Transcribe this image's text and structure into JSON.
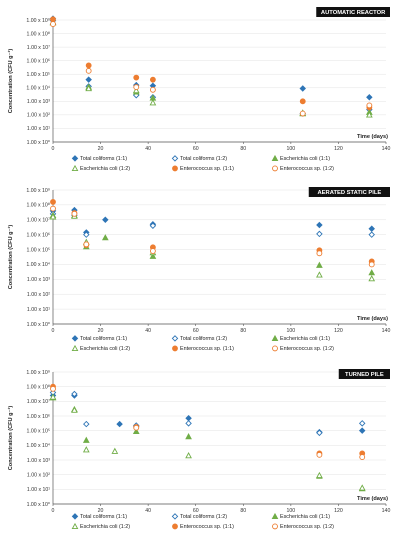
{
  "chart_data": [
    {
      "type": "scatter",
      "title": "AUTOMATIC REACTOR",
      "xlabel": "Time (days)",
      "ylabel": "Concentration (CFU g⁻¹)",
      "xlim": [
        0,
        140
      ],
      "x_ticks": [
        "0",
        "20",
        "40",
        "60",
        "80",
        "100",
        "120",
        "140"
      ],
      "ylim_log10": [
        0,
        9
      ],
      "y_ticks": [
        "1.00 x 10⁰",
        "1.00 x 10¹",
        "1.00 x 10²",
        "1.00 x 10³",
        "1.00 x 10⁴",
        "1.00 x 10⁵",
        "1.00 x 10⁶",
        "1.00 x 10⁷",
        "1.00 x 10⁸",
        "1.00 x 10⁹"
      ],
      "series": [
        {
          "name": "Total coliforms (1:1)",
          "marker": "diamond-filled",
          "color": "#2e75b6",
          "points": [
            [
              0,
              9.1
            ],
            [
              15,
              4.6
            ],
            [
              35,
              4.2
            ],
            [
              42,
              4.15
            ],
            [
              105,
              3.95
            ],
            [
              133,
              3.3
            ]
          ]
        },
        {
          "name": "Total coliforms (1:2)",
          "marker": "diamond-open",
          "color": "#2e75b6",
          "points": [
            [
              0,
              8.95
            ],
            [
              15,
              4.1
            ],
            [
              35,
              3.45
            ],
            [
              42,
              3.3
            ],
            [
              105,
              2.1
            ],
            [
              133,
              2.4
            ]
          ]
        },
        {
          "name": "Escherichia coli (1:1)",
          "marker": "triangle-filled",
          "color": "#70ad47",
          "points": [
            [
              0,
              8.8
            ],
            [
              15,
              4.05
            ],
            [
              35,
              3.7
            ],
            [
              42,
              3.25
            ],
            [
              105,
              2.1
            ],
            [
              133,
              2.2
            ]
          ]
        },
        {
          "name": "Escherichia coli (1:2)",
          "marker": "triangle-open",
          "color": "#70ad47",
          "points": [
            [
              0,
              8.85
            ],
            [
              15,
              3.95
            ],
            [
              35,
              3.8
            ],
            [
              42,
              2.9
            ],
            [
              105,
              2.15
            ],
            [
              133,
              2.0
            ]
          ]
        },
        {
          "name": "Enterococcus sp. (1:1)",
          "marker": "circle-filled",
          "color": "#ed7d31",
          "points": [
            [
              0,
              9.05
            ],
            [
              15,
              5.65
            ],
            [
              35,
              4.75
            ],
            [
              42,
              4.6
            ],
            [
              105,
              3.0
            ],
            [
              133,
              2.55
            ]
          ]
        },
        {
          "name": "Enterococcus sp. (1:2)",
          "marker": "circle-open",
          "color": "#ed7d31",
          "points": [
            [
              0,
              8.7
            ],
            [
              15,
              5.25
            ],
            [
              35,
              4.05
            ],
            [
              42,
              3.85
            ],
            [
              105,
              2.1
            ],
            [
              133,
              2.7
            ]
          ]
        }
      ]
    },
    {
      "type": "scatter",
      "title": "AERATED STATIC PILE",
      "xlabel": "Time (days)",
      "ylabel": "Concentration (CFU g⁻¹)",
      "xlim": [
        0,
        140
      ],
      "x_ticks": [
        "0",
        "20",
        "40",
        "60",
        "80",
        "100",
        "120",
        "140"
      ],
      "ylim_log10": [
        0,
        9
      ],
      "y_ticks": [
        "1.00 x 10⁰",
        "1.00 x 10¹",
        "1.00 x 10²",
        "1.00 x 10³",
        "1.00 x 10⁴",
        "1.00 x 10⁵",
        "1.00 x 10⁶",
        "1.00 x 10⁷",
        "1.00 x 10⁸",
        "1.00 x 10⁹"
      ],
      "series": [
        {
          "name": "Total coliforms (1:1)",
          "marker": "diamond-filled",
          "color": "#2e75b6",
          "points": [
            [
              0,
              7.6
            ],
            [
              9,
              7.65
            ],
            [
              14,
              6.15
            ],
            [
              22,
              7.0
            ],
            [
              42,
              6.7
            ],
            [
              112,
              6.65
            ],
            [
              134,
              6.4
            ]
          ]
        },
        {
          "name": "Total coliforms (1:2)",
          "marker": "diamond-open",
          "color": "#2e75b6",
          "points": [
            [
              0,
              7.4
            ],
            [
              9,
              7.3
            ],
            [
              14,
              6.0
            ],
            [
              42,
              6.6
            ],
            [
              112,
              6.05
            ],
            [
              134,
              6.0
            ]
          ]
        },
        {
          "name": "Escherichia coli (1:1)",
          "marker": "triangle-filled",
          "color": "#70ad47",
          "points": [
            [
              0,
              7.3
            ],
            [
              9,
              7.3
            ],
            [
              14,
              5.2
            ],
            [
              22,
              5.8
            ],
            [
              42,
              4.55
            ],
            [
              112,
              3.95
            ],
            [
              134,
              3.45
            ]
          ]
        },
        {
          "name": "Escherichia coli (1:2)",
          "marker": "triangle-open",
          "color": "#70ad47",
          "points": [
            [
              0,
              7.2
            ],
            [
              9,
              7.25
            ],
            [
              14,
              5.5
            ],
            [
              42,
              4.8
            ],
            [
              112,
              3.3
            ],
            [
              134,
              3.05
            ]
          ]
        },
        {
          "name": "Enterococcus sp. (1:1)",
          "marker": "circle-filled",
          "color": "#ed7d31",
          "points": [
            [
              0,
              8.2
            ],
            [
              9,
              7.45
            ],
            [
              14,
              5.3
            ],
            [
              42,
              5.15
            ],
            [
              112,
              4.95
            ],
            [
              134,
              4.2
            ]
          ]
        },
        {
          "name": "Enterococcus sp. (1:2)",
          "marker": "circle-open",
          "color": "#ed7d31",
          "points": [
            [
              0,
              7.75
            ],
            [
              9,
              7.4
            ],
            [
              14,
              5.35
            ],
            [
              42,
              4.9
            ],
            [
              112,
              4.75
            ],
            [
              134,
              4.0
            ]
          ]
        }
      ]
    },
    {
      "type": "scatter",
      "title": "TURNED PILE",
      "xlabel": "Time (days)",
      "ylabel": "Concentration (CFU g⁻¹)",
      "xlim": [
        0,
        140
      ],
      "x_ticks": [
        "0",
        "20",
        "40",
        "60",
        "80",
        "100",
        "120",
        "140"
      ],
      "ylim_log10": [
        0,
        9
      ],
      "y_ticks": [
        "1.00 x 10⁰",
        "1.00 x 10¹",
        "1.00 x 10²",
        "1.00 x 10³",
        "1.00 x 10⁴",
        "1.00 x 10⁵",
        "1.00 x 10⁶",
        "1.00 x 10⁷",
        "1.00 x 10⁸",
        "1.00 x 10⁹"
      ],
      "series": [
        {
          "name": "Total coliforms (1:1)",
          "marker": "diamond-filled",
          "color": "#2e75b6",
          "points": [
            [
              0,
              7.4
            ],
            [
              9,
              7.4
            ],
            [
              28,
              5.45
            ],
            [
              35,
              5.3
            ],
            [
              57,
              5.85
            ],
            [
              112,
              4.9
            ],
            [
              130,
              5.0
            ]
          ]
        },
        {
          "name": "Total coliforms (1:2)",
          "marker": "diamond-open",
          "color": "#2e75b6",
          "points": [
            [
              0,
              7.6
            ],
            [
              9,
              7.5
            ],
            [
              14,
              5.45
            ],
            [
              35,
              5.35
            ],
            [
              57,
              5.5
            ],
            [
              112,
              4.85
            ],
            [
              130,
              5.5
            ]
          ]
        },
        {
          "name": "Escherichia coli (1:1)",
          "marker": "triangle-filled",
          "color": "#70ad47",
          "points": [
            [
              0,
              7.25
            ],
            [
              9,
              6.45
            ],
            [
              14,
              4.35
            ],
            [
              35,
              4.95
            ],
            [
              57,
              4.6
            ],
            [
              112,
              1.9
            ],
            [
              130,
              1.05
            ]
          ]
        },
        {
          "name": "Escherichia coli (1:2)",
          "marker": "triangle-open",
          "color": "#70ad47",
          "points": [
            [
              0,
              7.3
            ],
            [
              9,
              6.4
            ],
            [
              14,
              3.7
            ],
            [
              26,
              3.6
            ],
            [
              57,
              3.3
            ],
            [
              112,
              1.95
            ],
            [
              130,
              1.1
            ]
          ]
        },
        {
          "name": "Enterococcus sp. (1:1)",
          "marker": "circle-filled",
          "color": "#ed7d31",
          "points": [
            [
              0,
              8.0
            ],
            [
              35,
              5.25
            ],
            [
              112,
              3.45
            ],
            [
              130,
              3.45
            ]
          ]
        },
        {
          "name": "Enterococcus sp. (1:2)",
          "marker": "circle-open",
          "color": "#ed7d31",
          "points": [
            [
              0,
              7.85
            ],
            [
              35,
              5.2
            ],
            [
              112,
              3.35
            ],
            [
              130,
              3.2
            ]
          ]
        }
      ]
    }
  ]
}
